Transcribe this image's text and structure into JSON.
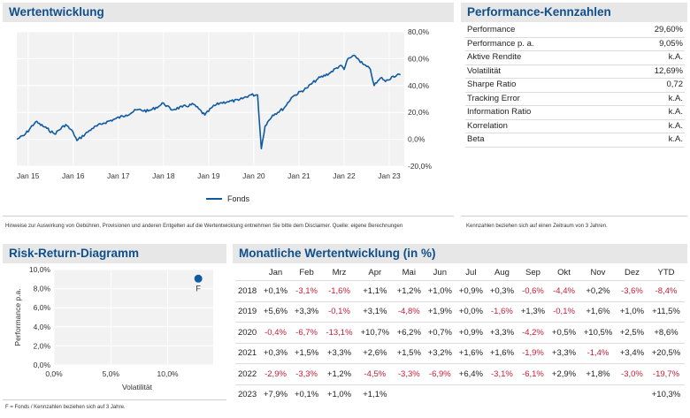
{
  "wertentwicklung": {
    "title": "Wertentwicklung",
    "legend": "Fonds",
    "disclaimer": "Hinweise zur Auswirkung von Gebühren, Provisionen und anderen Entgelten auf die Wertentwicklung entnehmen Sie bitte dem Disclaimer.   Quelle: eigene Berechnungen"
  },
  "performance": {
    "title": "Performance-Kennzahlen",
    "rows": [
      {
        "label": "Performance",
        "value": "29,60%"
      },
      {
        "label": "Performance p. a.",
        "value": "9,05%"
      },
      {
        "label": "Aktive Rendite",
        "value": "k.A."
      },
      {
        "label": "Volatilität",
        "value": "12,69%"
      },
      {
        "label": "Sharpe Ratio",
        "value": "0,72"
      },
      {
        "label": "Tracking Error",
        "value": "k.A."
      },
      {
        "label": "Information Ratio",
        "value": "k.A."
      },
      {
        "label": "Korrelation",
        "value": "k.A."
      },
      {
        "label": "Beta",
        "value": "k.A."
      }
    ],
    "note": "Kennzahlen beziehen sich auf einen Zeitraum von 3 Jahren."
  },
  "risk_return": {
    "title": "Risk-Return-Diagramm",
    "point_label": "F",
    "note": "F = Fonds / Kennzahlen beziehen sich auf 3 Jahre.",
    "point_color": "#0f5aa0"
  },
  "monthly": {
    "title": "Monatliche Wertentwicklung (in %)",
    "headers": [
      "",
      "Jan",
      "Feb",
      "Mrz",
      "Apr",
      "Mai",
      "Jun",
      "Jul",
      "Aug",
      "Sep",
      "Okt",
      "Nov",
      "Dez",
      "YTD"
    ],
    "rows": [
      [
        "2018",
        "+0,1%",
        "-3,1%",
        "-1,6%",
        "+1,1%",
        "+1,2%",
        "+1,0%",
        "+0,9%",
        "+0,3%",
        "-0,6%",
        "-4,4%",
        "+0,2%",
        "-3,6%",
        "-8,4%"
      ],
      [
        "2019",
        "+5,6%",
        "+3,3%",
        "-0,1%",
        "+3,1%",
        "-4,8%",
        "+1,9%",
        "+0,0%",
        "-1,6%",
        "+1,3%",
        "-0,1%",
        "+1,6%",
        "+1,0%",
        "+11,5%"
      ],
      [
        "2020",
        "-0,4%",
        "-6,7%",
        "-13,1%",
        "+10,7%",
        "+6,2%",
        "+0,7%",
        "+0,9%",
        "+3,3%",
        "-4,2%",
        "+0,5%",
        "+10,5%",
        "+2,5%",
        "+8,6%"
      ],
      [
        "2021",
        "+0,3%",
        "+1,5%",
        "+3,3%",
        "+2,6%",
        "+1,5%",
        "+3,2%",
        "+1,6%",
        "+1,6%",
        "-1,9%",
        "+3,3%",
        "-1,4%",
        "+3,4%",
        "+20,5%"
      ],
      [
        "2022",
        "-2,9%",
        "-3,3%",
        "+1,2%",
        "-4,5%",
        "-3,3%",
        "-6,9%",
        "+6,4%",
        "-3,1%",
        "-6,1%",
        "+2,9%",
        "+1,8%",
        "-3,0%",
        "-19,7%"
      ],
      [
        "2023",
        "+7,9%",
        "+0,1%",
        "+1,0%",
        "+1,1%",
        "",
        "",
        "",
        "",
        "",
        "",
        "",
        "",
        "+10,3%"
      ]
    ],
    "neg_color": "#c41e3a"
  },
  "chart_data": [
    {
      "type": "line",
      "title": "Wertentwicklung",
      "series": [
        {
          "name": "Fonds",
          "x": [
            "2014-10",
            "2014-12",
            "2015-03",
            "2015-06",
            "2015-08",
            "2015-11",
            "2016-01",
            "2016-02",
            "2016-06",
            "2016-09",
            "2016-12",
            "2017-03",
            "2017-06",
            "2017-09",
            "2017-12",
            "2018-01",
            "2018-03",
            "2018-06",
            "2018-09",
            "2018-12",
            "2019-02",
            "2019-04",
            "2019-06",
            "2019-09",
            "2019-12",
            "2020-02",
            "2020-03",
            "2020-04",
            "2020-06",
            "2020-09",
            "2020-11",
            "2020-12",
            "2021-03",
            "2021-06",
            "2021-09",
            "2021-12",
            "2022-01",
            "2022-02",
            "2022-04",
            "2022-06",
            "2022-08",
            "2022-09",
            "2022-11",
            "2022-12",
            "2023-02",
            "2023-04"
          ],
          "y": [
            0,
            3,
            13,
            8,
            4,
            11,
            5,
            -1,
            8,
            12,
            15,
            18,
            22,
            21,
            25,
            27,
            22,
            24,
            26,
            18,
            24,
            27,
            28,
            29,
            33,
            33,
            -7,
            10,
            18,
            23,
            31,
            33,
            38,
            45,
            49,
            55,
            52,
            60,
            62,
            56,
            52,
            40,
            46,
            43,
            47,
            48
          ]
        }
      ],
      "x_ticks": [
        "Jan 15",
        "Jan 16",
        "Jan 17",
        "Jan 18",
        "Jan 19",
        "Jan 20",
        "Jan 21",
        "Jan 22",
        "Jan 23"
      ],
      "y_ticks": [
        "80,0%",
        "60,0%",
        "40,0%",
        "20,0%",
        "0,0%",
        "-20,0%"
      ],
      "ylim": [
        -20,
        80
      ],
      "grid": true,
      "legend": "bottom-center"
    },
    {
      "type": "scatter",
      "title": "Risk-Return-Diagramm",
      "xlabel": "Volatilität",
      "ylabel": "Performance p.a.",
      "x_ticks": [
        "0,0%",
        "5,0%",
        "10,0%"
      ],
      "y_ticks": [
        "10,0%",
        "8,0%",
        "6,0%",
        "4,0%",
        "2,0%",
        "0,0%"
      ],
      "xlim": [
        0,
        14
      ],
      "ylim": [
        0,
        10
      ],
      "points": [
        {
          "label": "F",
          "x": 12.69,
          "y": 9.05
        }
      ]
    }
  ]
}
